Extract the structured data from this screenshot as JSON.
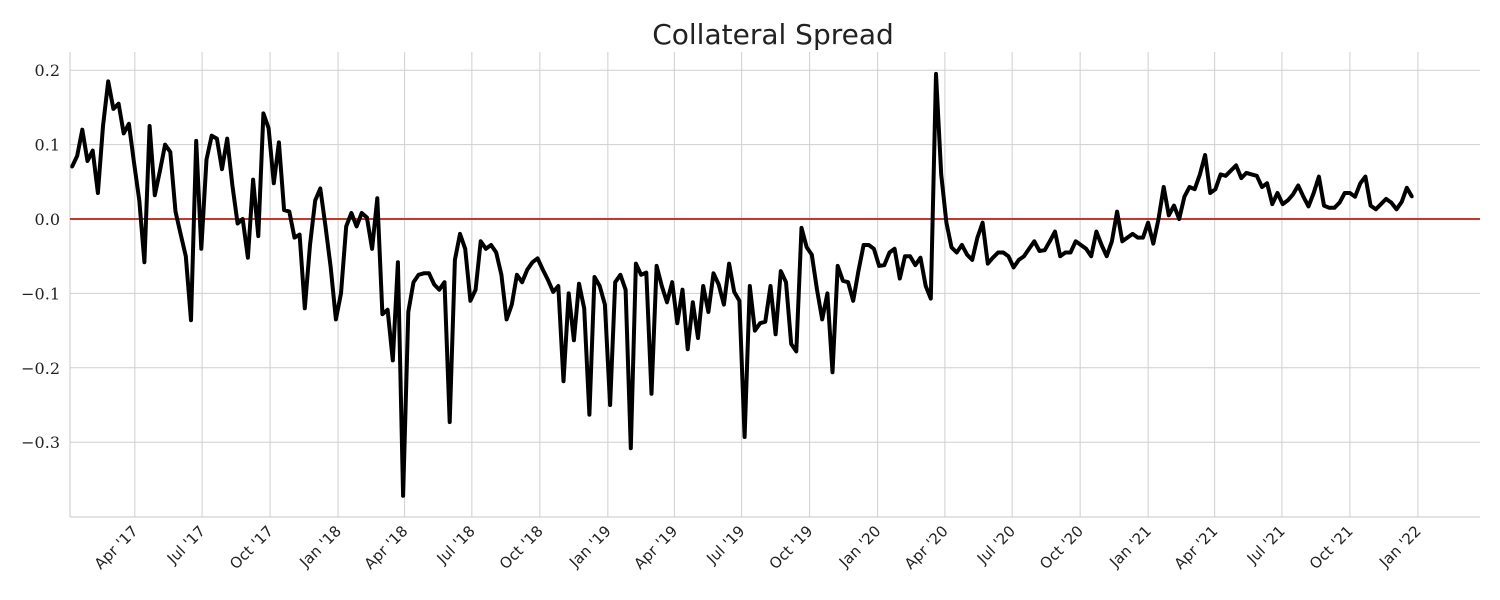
{
  "chart_data": {
    "type": "line",
    "title": "Collateral Spread",
    "xlabel": "",
    "ylabel": "",
    "x_start": "2017-01-06",
    "x_end": "2021-12-24",
    "x_tick_dates": [
      "2017-04-01",
      "2017-07-01",
      "2017-10-01",
      "2018-01-01",
      "2018-04-01",
      "2018-07-01",
      "2018-10-01",
      "2019-01-01",
      "2019-04-01",
      "2019-07-01",
      "2019-10-01",
      "2020-01-01",
      "2020-04-01",
      "2020-07-01",
      "2020-10-01",
      "2021-01-01",
      "2021-04-01",
      "2021-07-01",
      "2021-10-01",
      "2022-01-01"
    ],
    "x_tick_labels": [
      "Apr '17",
      "Jul '17",
      "Oct '17",
      "Jan '18",
      "Apr '18",
      "Jul '18",
      "Oct '18",
      "Jan '19",
      "Apr '19",
      "Jul '19",
      "Oct '19",
      "Jan '20",
      "Apr '20",
      "Jul '20",
      "Oct '20",
      "Jan '21",
      "Apr '21",
      "Jul '21",
      "Oct '21",
      "Jan '22"
    ],
    "y_ticks": [
      0.2,
      0.1,
      0.0,
      -0.1,
      -0.2,
      -0.3
    ],
    "y_tick_labels": [
      "0.2",
      "0.1",
      "0.0",
      "−0.1",
      "−0.2",
      "−0.3"
    ],
    "ylim": [
      -0.4,
      0.22
    ],
    "grid": true,
    "reference_line": {
      "y": 0.0,
      "color": "#c0392b"
    },
    "series": [
      {
        "color": "#000000",
        "frequency": "weekly",
        "values": [
          0.07,
          0.085,
          0.12,
          0.078,
          0.092,
          0.035,
          0.125,
          0.185,
          0.148,
          0.155,
          0.115,
          0.128,
          0.075,
          0.025,
          -0.058,
          0.125,
          0.032,
          0.065,
          0.1,
          0.09,
          0.01,
          -0.02,
          -0.05,
          -0.136,
          0.105,
          -0.04,
          0.08,
          0.112,
          0.108,
          0.067,
          0.108,
          0.045,
          -0.006,
          0.0,
          -0.052,
          0.053,
          -0.023,
          0.142,
          0.122,
          0.048,
          0.103,
          0.012,
          0.01,
          -0.025,
          -0.021,
          -0.12,
          -0.035,
          0.025,
          0.041,
          -0.01,
          -0.065,
          -0.135,
          -0.1,
          -0.01,
          0.008,
          -0.01,
          0.008,
          0.002,
          -0.04,
          0.028,
          -0.128,
          -0.122,
          -0.19,
          -0.058,
          -0.372,
          -0.125,
          -0.085,
          -0.075,
          -0.073,
          -0.073,
          -0.088,
          -0.095,
          -0.085,
          -0.273,
          -0.055,
          -0.02,
          -0.04,
          -0.11,
          -0.095,
          -0.03,
          -0.04,
          -0.035,
          -0.045,
          -0.075,
          -0.135,
          -0.115,
          -0.075,
          -0.085,
          -0.068,
          -0.058,
          -0.053,
          -0.068,
          -0.082,
          -0.098,
          -0.09,
          -0.218,
          -0.1,
          -0.163,
          -0.087,
          -0.12,
          -0.263,
          -0.078,
          -0.09,
          -0.115,
          -0.25,
          -0.085,
          -0.075,
          -0.095,
          -0.308,
          -0.06,
          -0.075,
          -0.072,
          -0.235,
          -0.063,
          -0.09,
          -0.112,
          -0.085,
          -0.14,
          -0.095,
          -0.175,
          -0.112,
          -0.16,
          -0.09,
          -0.125,
          -0.073,
          -0.088,
          -0.115,
          -0.06,
          -0.098,
          -0.11,
          -0.293,
          -0.09,
          -0.15,
          -0.14,
          -0.138,
          -0.09,
          -0.155,
          -0.07,
          -0.085,
          -0.168,
          -0.178,
          -0.012,
          -0.038,
          -0.048,
          -0.095,
          -0.135,
          -0.1,
          -0.206,
          -0.063,
          -0.083,
          -0.085,
          -0.11,
          -0.07,
          -0.035,
          -0.035,
          -0.04,
          -0.063,
          -0.062,
          -0.045,
          -0.04,
          -0.08,
          -0.05,
          -0.05,
          -0.062,
          -0.052,
          -0.09,
          -0.107,
          0.195,
          0.06,
          -0.005,
          -0.038,
          -0.045,
          -0.035,
          -0.048,
          -0.055,
          -0.025,
          -0.005,
          -0.06,
          -0.052,
          -0.045,
          -0.045,
          -0.05,
          -0.065,
          -0.055,
          -0.05,
          -0.04,
          -0.03,
          -0.043,
          -0.042,
          -0.03,
          -0.017,
          -0.05,
          -0.045,
          -0.045,
          -0.03,
          -0.035,
          -0.04,
          -0.05,
          -0.017,
          -0.035,
          -0.05,
          -0.03,
          0.01,
          -0.03,
          -0.025,
          -0.02,
          -0.025,
          -0.025,
          -0.005,
          -0.033,
          0.0,
          0.043,
          0.005,
          0.018,
          0.0,
          0.03,
          0.043,
          0.04,
          0.06,
          0.086,
          0.035,
          0.04,
          0.06,
          0.058,
          0.065,
          0.072,
          0.055,
          0.062,
          0.06,
          0.058,
          0.043,
          0.048,
          0.02,
          0.035,
          0.02,
          0.025,
          0.033,
          0.045,
          0.03,
          0.017,
          0.035,
          0.057,
          0.018,
          0.015,
          0.015,
          0.022,
          0.035,
          0.035,
          0.03,
          0.048,
          0.057,
          0.018,
          0.013,
          0.02,
          0.027,
          0.022,
          0.013,
          0.023,
          0.042,
          0.03
        ]
      }
    ]
  }
}
